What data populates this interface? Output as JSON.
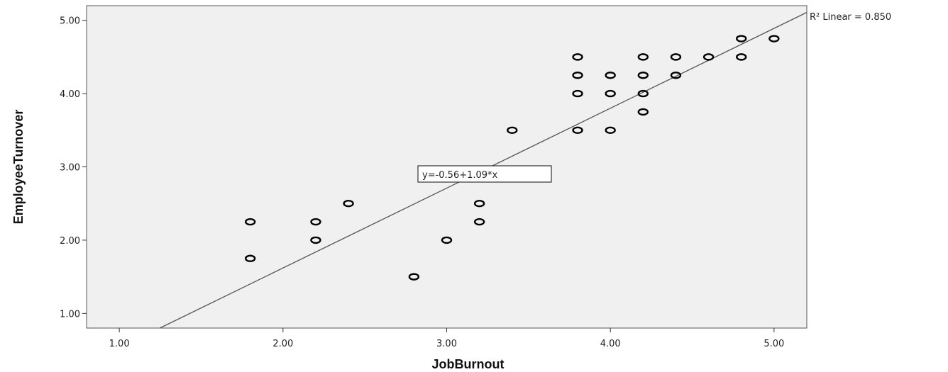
{
  "chart_data": {
    "type": "scatter",
    "xlabel": "JobBurnout",
    "ylabel": "EmployeeTurnover",
    "xlim": [
      0.8,
      5.2
    ],
    "ylim": [
      0.8,
      5.2
    ],
    "x_ticks": [
      "1.00",
      "2.00",
      "3.00",
      "4.00",
      "5.00"
    ],
    "y_ticks": [
      "1.00",
      "2.00",
      "3.00",
      "4.00",
      "5.00"
    ],
    "x_tick_values": [
      1,
      2,
      3,
      4,
      5
    ],
    "y_tick_values": [
      1,
      2,
      3,
      4,
      5
    ],
    "grid": false,
    "plot_background": "#f0f0f0",
    "marker_color": "#000000",
    "points": [
      {
        "x": 1.8,
        "y": 2.25
      },
      {
        "x": 1.8,
        "y": 1.75
      },
      {
        "x": 2.2,
        "y": 2.25
      },
      {
        "x": 2.2,
        "y": 2.0
      },
      {
        "x": 2.4,
        "y": 2.5
      },
      {
        "x": 2.8,
        "y": 1.5
      },
      {
        "x": 3.0,
        "y": 2.0
      },
      {
        "x": 3.2,
        "y": 2.5
      },
      {
        "x": 3.2,
        "y": 2.25
      },
      {
        "x": 3.4,
        "y": 3.5
      },
      {
        "x": 3.8,
        "y": 4.5
      },
      {
        "x": 3.8,
        "y": 4.25
      },
      {
        "x": 3.8,
        "y": 4.0
      },
      {
        "x": 3.8,
        "y": 3.5
      },
      {
        "x": 4.0,
        "y": 4.25
      },
      {
        "x": 4.0,
        "y": 4.0
      },
      {
        "x": 4.0,
        "y": 3.5
      },
      {
        "x": 4.2,
        "y": 4.5
      },
      {
        "x": 4.2,
        "y": 4.25
      },
      {
        "x": 4.2,
        "y": 4.0
      },
      {
        "x": 4.2,
        "y": 3.75
      },
      {
        "x": 4.4,
        "y": 4.5
      },
      {
        "x": 4.4,
        "y": 4.25
      },
      {
        "x": 4.6,
        "y": 4.5
      },
      {
        "x": 4.8,
        "y": 4.75
      },
      {
        "x": 4.8,
        "y": 4.5
      },
      {
        "x": 5.0,
        "y": 4.75
      }
    ],
    "fit_line": {
      "intercept": -0.56,
      "slope": 1.09,
      "equation_label": "y=-0.56+1.09*x",
      "r2_label": "R² Linear = 0.850"
    }
  }
}
